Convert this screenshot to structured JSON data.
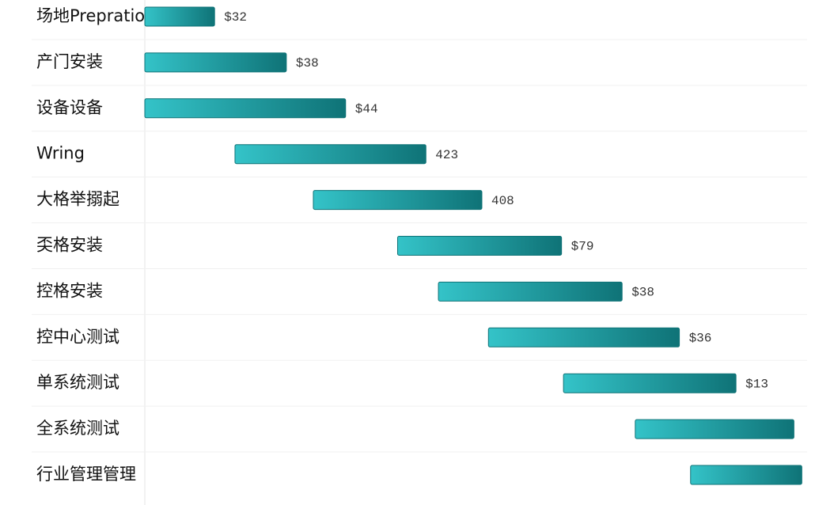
{
  "chart_data": {
    "type": "gantt",
    "categories": [
      "场地Prepration",
      "产门安装",
      "设备设备",
      "Wring",
      "大格举搦起",
      "奀格安装",
      "控格安装",
      "控中心测试",
      "单系统测试",
      "全系统测试",
      "行业管理管理"
    ],
    "start": [
      0,
      0,
      0,
      13.7,
      25.6,
      38.4,
      44.6,
      52.2,
      63.6,
      74.5,
      82.9
    ],
    "end": [
      10.6,
      21.5,
      30.5,
      42.7,
      51.2,
      63.3,
      72.5,
      81.2,
      89.8,
      98.6,
      99.8
    ],
    "bar_labels": [
      "$32",
      "$38",
      "$44",
      "423",
      "408",
      "$79",
      "$38",
      "$36",
      "$13",
      null,
      null
    ],
    "xlim": [
      0,
      100
    ],
    "gradient": [
      "#34c3c8",
      "#0f7377"
    ]
  }
}
